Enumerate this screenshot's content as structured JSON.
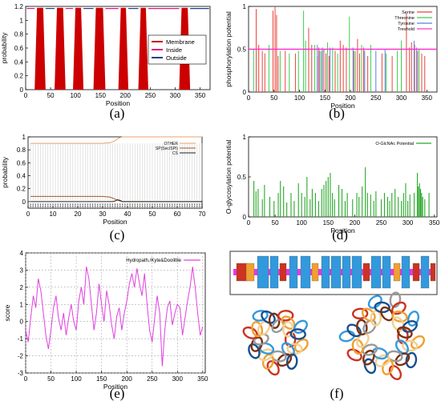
{
  "colors": {
    "membrane": "#cc0000",
    "inside": "#e0177f",
    "outside": "#1f3f8f",
    "serine": "#e8453c",
    "threonine": "#3ccf4e",
    "tyrosine": "#5a7fe0",
    "threshold": "#ff33cc",
    "other": "#e8a070",
    "sp": "#a05a2c",
    "cs": "#222222",
    "oglcnac": "#2aa82a",
    "hydropathy": "#e040e0",
    "structure_red": "#cc3322",
    "structure_orange": "#f0a030",
    "structure_blue": "#3399dd",
    "structure_magenta": "#ee33ee"
  },
  "chart_data": [
    {
      "id": "a",
      "type": "area",
      "caption": "(a)",
      "xlabel": "Position",
      "ylabel": "probability",
      "xlim": [
        0,
        370
      ],
      "ylim": [
        0,
        1.2
      ],
      "xticks": [
        0,
        50,
        100,
        150,
        200,
        250,
        300,
        350
      ],
      "yticks": [
        0,
        0.2,
        0.4,
        0.6,
        0.8,
        1,
        1.2
      ],
      "ytick_labels": [
        "0",
        "0.2",
        "0.4",
        "0.6",
        "0.8",
        "1",
        "1.2"
      ],
      "legend": [
        "Membrane",
        "Inside",
        "Outside"
      ],
      "legend_position": "right",
      "membrane_segments": [
        [
          18,
          40
        ],
        [
          58,
          80
        ],
        [
          95,
          116
        ],
        [
          136,
          160
        ],
        [
          186,
          206
        ],
        [
          226,
          246
        ],
        [
          308,
          330
        ]
      ]
    },
    {
      "id": "b",
      "type": "bar",
      "caption": "(b)",
      "xlabel": "Position",
      "ylabel": "phosphorylation potential",
      "xlim": [
        0,
        370
      ],
      "ylim": [
        0,
        1
      ],
      "xticks": [
        0,
        50,
        100,
        150,
        200,
        250,
        300,
        350
      ],
      "yticks": [
        0,
        0.5,
        1
      ],
      "ytick_labels": [
        "0",
        "0.5",
        "1"
      ],
      "threshold": 0.5,
      "legend": [
        "Serine",
        "Threonine",
        "Tyrosine",
        "Treshold"
      ],
      "legend_position": "top-right",
      "serine": [
        [
          15,
          0.97
        ],
        [
          20,
          0.55
        ],
        [
          27,
          0.48
        ],
        [
          32,
          0.45
        ],
        [
          48,
          0.95
        ],
        [
          52,
          1.0
        ],
        [
          55,
          0.9
        ],
        [
          58,
          0.42
        ],
        [
          72,
          0.48
        ],
        [
          92,
          0.45
        ],
        [
          118,
          0.75
        ],
        [
          124,
          0.55
        ],
        [
          135,
          0.42
        ],
        [
          138,
          0.52
        ],
        [
          148,
          0.5
        ],
        [
          152,
          0.45
        ],
        [
          158,
          0.42
        ],
        [
          170,
          0.48
        ],
        [
          180,
          0.6
        ],
        [
          186,
          0.55
        ],
        [
          192,
          0.52
        ],
        [
          207,
          0.48
        ],
        [
          214,
          0.62
        ],
        [
          218,
          0.45
        ],
        [
          226,
          0.52
        ],
        [
          234,
          0.42
        ],
        [
          262,
          0.45
        ],
        [
          282,
          0.42
        ],
        [
          300,
          0.48
        ],
        [
          310,
          0.92
        ],
        [
          316,
          0.52
        ],
        [
          320,
          0.58
        ],
        [
          326,
          0.55
        ],
        [
          332,
          0.48
        ],
        [
          340,
          0.45
        ],
        [
          346,
          0.42
        ]
      ],
      "threonine": [
        [
          10,
          0.5
        ],
        [
          40,
          0.55
        ],
        [
          62,
          0.48
        ],
        [
          80,
          0.45
        ],
        [
          98,
          0.48
        ],
        [
          108,
          0.95
        ],
        [
          112,
          0.6
        ],
        [
          130,
          0.55
        ],
        [
          143,
          0.48
        ],
        [
          155,
          0.58
        ],
        [
          165,
          0.52
        ],
        [
          175,
          0.45
        ],
        [
          198,
          0.88
        ],
        [
          210,
          0.48
        ],
        [
          222,
          0.55
        ],
        [
          240,
          0.55
        ],
        [
          270,
          0.45
        ],
        [
          292,
          0.48
        ],
        [
          300,
          0.6
        ],
        [
          335,
          0.5
        ]
      ],
      "tyrosine": [
        [
          135,
          0.55
        ],
        [
          140,
          0.48
        ],
        [
          145,
          0.52
        ],
        [
          160,
          0.52
        ],
        [
          205,
          0.52
        ],
        [
          228,
          0.48
        ],
        [
          250,
          0.48
        ],
        [
          268,
          0.5
        ],
        [
          325,
          0.6
        ],
        [
          330,
          0.52
        ]
      ]
    },
    {
      "id": "c",
      "type": "line",
      "caption": "(c)",
      "xlabel": "Position",
      "ylabel": "probability",
      "xlim": [
        0,
        70
      ],
      "ylim": [
        -0.1,
        1
      ],
      "xticks": [
        0,
        10,
        20,
        30,
        40,
        50,
        60,
        70
      ],
      "yticks": [
        0,
        0.2,
        0.4,
        0.6,
        0.8,
        1
      ],
      "ytick_labels": [
        "0",
        "0.2",
        "0.4",
        "0.6",
        "0.8",
        "1"
      ],
      "legend": [
        "OTHER",
        "SP(Sec/SPI)",
        "CS"
      ],
      "legend_position": "top-right",
      "series": [
        {
          "name": "OTHER",
          "x": [
            1,
            30,
            33,
            35,
            36,
            37,
            38,
            40,
            70
          ],
          "values": [
            0.9,
            0.9,
            0.91,
            0.94,
            0.97,
            0.99,
            1.0,
            1.0,
            1.0
          ]
        },
        {
          "name": "SP(Sec/SPI)",
          "x": [
            1,
            30,
            33,
            35,
            36,
            37,
            38,
            40,
            70
          ],
          "values": [
            0.08,
            0.08,
            0.07,
            0.04,
            0.02,
            0.01,
            0.0,
            0.0,
            0.0
          ]
        },
        {
          "name": "CS",
          "x": [
            1,
            34,
            35,
            36,
            37,
            38,
            70
          ],
          "values": [
            0.0,
            0.0,
            0.01,
            0.03,
            0.02,
            0.0,
            0.0
          ]
        }
      ]
    },
    {
      "id": "d",
      "type": "bar",
      "caption": "(d)",
      "xlabel": "Position",
      "ylabel": "O-glycosylation potential",
      "xlim": [
        0,
        355
      ],
      "ylim": [
        0,
        1
      ],
      "xticks": [
        0,
        50,
        100,
        150,
        200,
        250,
        300,
        350
      ],
      "yticks": [
        0,
        0.5,
        1
      ],
      "ytick_labels": [
        "0",
        "0.5",
        "1"
      ],
      "legend": [
        "O-GlcNAc Potential"
      ],
      "legend_position": "top-right",
      "series": [
        {
          "name": "O-GlcNAc Potential",
          "x": [
            10,
            14,
            18,
            26,
            30,
            40,
            48,
            56,
            60,
            66,
            72,
            80,
            86,
            94,
            100,
            106,
            110,
            116,
            120,
            126,
            132,
            138,
            142,
            146,
            150,
            154,
            158,
            162,
            170,
            176,
            182,
            186,
            196,
            204,
            208,
            214,
            220,
            224,
            230,
            236,
            240,
            250,
            256,
            262,
            266,
            270,
            276,
            282,
            288,
            292,
            296,
            300,
            304,
            312,
            318,
            320,
            322,
            324,
            326,
            328,
            332,
            340
          ],
          "values": [
            0.45,
            0.32,
            0.35,
            0.22,
            0.4,
            0.25,
            0.2,
            0.3,
            0.45,
            0.38,
            0.18,
            0.3,
            0.2,
            0.42,
            0.3,
            0.25,
            0.5,
            0.22,
            0.35,
            0.3,
            0.2,
            0.35,
            0.4,
            0.45,
            0.5,
            0.55,
            0.3,
            0.22,
            0.4,
            0.35,
            0.2,
            0.3,
            0.22,
            0.3,
            0.25,
            0.38,
            0.62,
            0.3,
            0.28,
            0.2,
            0.32,
            0.22,
            0.3,
            0.25,
            0.2,
            0.3,
            0.35,
            0.25,
            0.2,
            0.3,
            0.42,
            0.2,
            0.28,
            0.3,
            0.55,
            0.38,
            0.42,
            0.35,
            0.3,
            0.25,
            0.22,
            0.3
          ]
        }
      ]
    },
    {
      "id": "e",
      "type": "line",
      "caption": "(e)",
      "xlabel": "Position",
      "ylabel": "score",
      "xlim": [
        0,
        355
      ],
      "ylim": [
        -3,
        4
      ],
      "xticks": [
        0,
        50,
        100,
        150,
        200,
        250,
        300,
        350
      ],
      "yticks": [
        -3,
        -2,
        -1,
        0,
        1,
        2,
        3,
        4
      ],
      "grid": true,
      "legend": [
        "Hydropath./Kyte&Doolittle"
      ],
      "legend_position": "top-right",
      "series": [
        {
          "name": "Hydropath./Kyte&Doolittle",
          "x": [
            0,
            5,
            10,
            15,
            20,
            25,
            30,
            35,
            40,
            45,
            50,
            55,
            60,
            65,
            70,
            75,
            80,
            85,
            90,
            95,
            100,
            105,
            110,
            115,
            120,
            125,
            130,
            135,
            140,
            145,
            150,
            155,
            160,
            165,
            170,
            175,
            180,
            185,
            190,
            195,
            200,
            205,
            210,
            215,
            220,
            225,
            230,
            235,
            240,
            245,
            250,
            255,
            260,
            265,
            270,
            275,
            280,
            285,
            290,
            295,
            300,
            305,
            310,
            315,
            320,
            325,
            330,
            335,
            340,
            345,
            350
          ],
          "values": [
            -0.5,
            -1.2,
            0.2,
            1.5,
            0.8,
            2.5,
            1.8,
            0.5,
            -0.8,
            -1.6,
            -0.5,
            0.8,
            1.5,
            0.2,
            -0.5,
            0.5,
            -0.8,
            0.2,
            1.0,
            0.0,
            -0.5,
            1.2,
            2.0,
            1.0,
            3.2,
            2.5,
            1.0,
            -0.5,
            0.5,
            2.2,
            1.0,
            0.0,
            1.8,
            1.0,
            -0.2,
            -1.0,
            0.3,
            0.8,
            -0.5,
            0.5,
            1.2,
            2.2,
            2.8,
            2.0,
            3.1,
            2.2,
            1.5,
            2.8,
            1.0,
            -0.5,
            -1.2,
            0.2,
            1.5,
            0.5,
            -2.6,
            -0.5,
            0.8,
            1.2,
            -0.2,
            0.5,
            1.0,
            0.8,
            -0.8,
            0.2,
            1.2,
            2.0,
            3.2,
            2.0,
            0.5,
            -0.8,
            -0.3
          ]
        }
      ]
    }
  ]
}
